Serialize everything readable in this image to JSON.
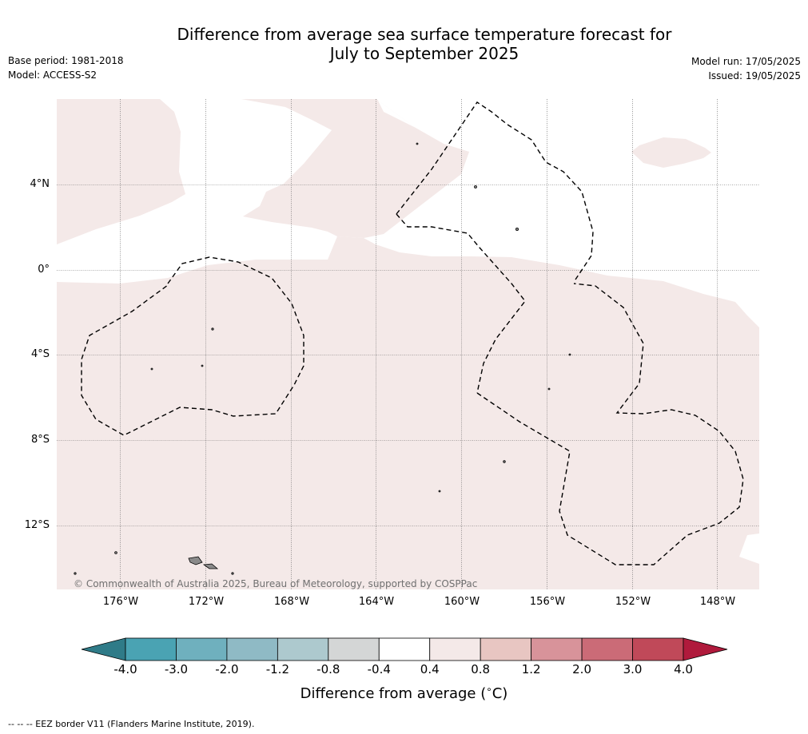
{
  "title_line1": "Difference from average sea surface temperature forecast for",
  "title_line2": "July to September 2025",
  "base_period": "Base period: 1981-2018",
  "model": "Model: ACCESS-S2",
  "model_run": "Model run: 17/05/2025",
  "issued": "Issued: 19/05/2025",
  "copyright": "© Commonwealth of Australia 2025, Bureau of Meteorology, supported by COSPPac",
  "lat_labels": [
    "4°N",
    "0°",
    "4°S",
    "8°S",
    "12°S"
  ],
  "lon_labels": [
    "176°W",
    "172°W",
    "168°W",
    "164°W",
    "160°W",
    "156°W",
    "152°W",
    "148°W"
  ],
  "colorbar": {
    "ticks": [
      "-4.0",
      "-3.0",
      "-2.0",
      "-1.2",
      "-0.8",
      "-0.4",
      "0.4",
      "0.8",
      "1.2",
      "2.0",
      "3.0",
      "4.0"
    ],
    "colors": [
      "#2f7b88",
      "#4aa3b3",
      "#6fb0be",
      "#8fbac5",
      "#adc9ce",
      "#d4d6d6",
      "#ffffff",
      "#f4e9e8",
      "#e8c6c2",
      "#d8939a",
      "#cb6b77",
      "#c04959",
      "#b01a3c"
    ],
    "label": "Difference from average ($^\\circ$C)"
  },
  "legend_note": "--  --  -- EEZ border V11 (Flanders Marine Institute, 2019).",
  "map_colors": {
    "anomaly_fill": "#f4e9e8",
    "ocean_neutral": "#ffffff",
    "island_fill": "#8a8a8a"
  }
}
